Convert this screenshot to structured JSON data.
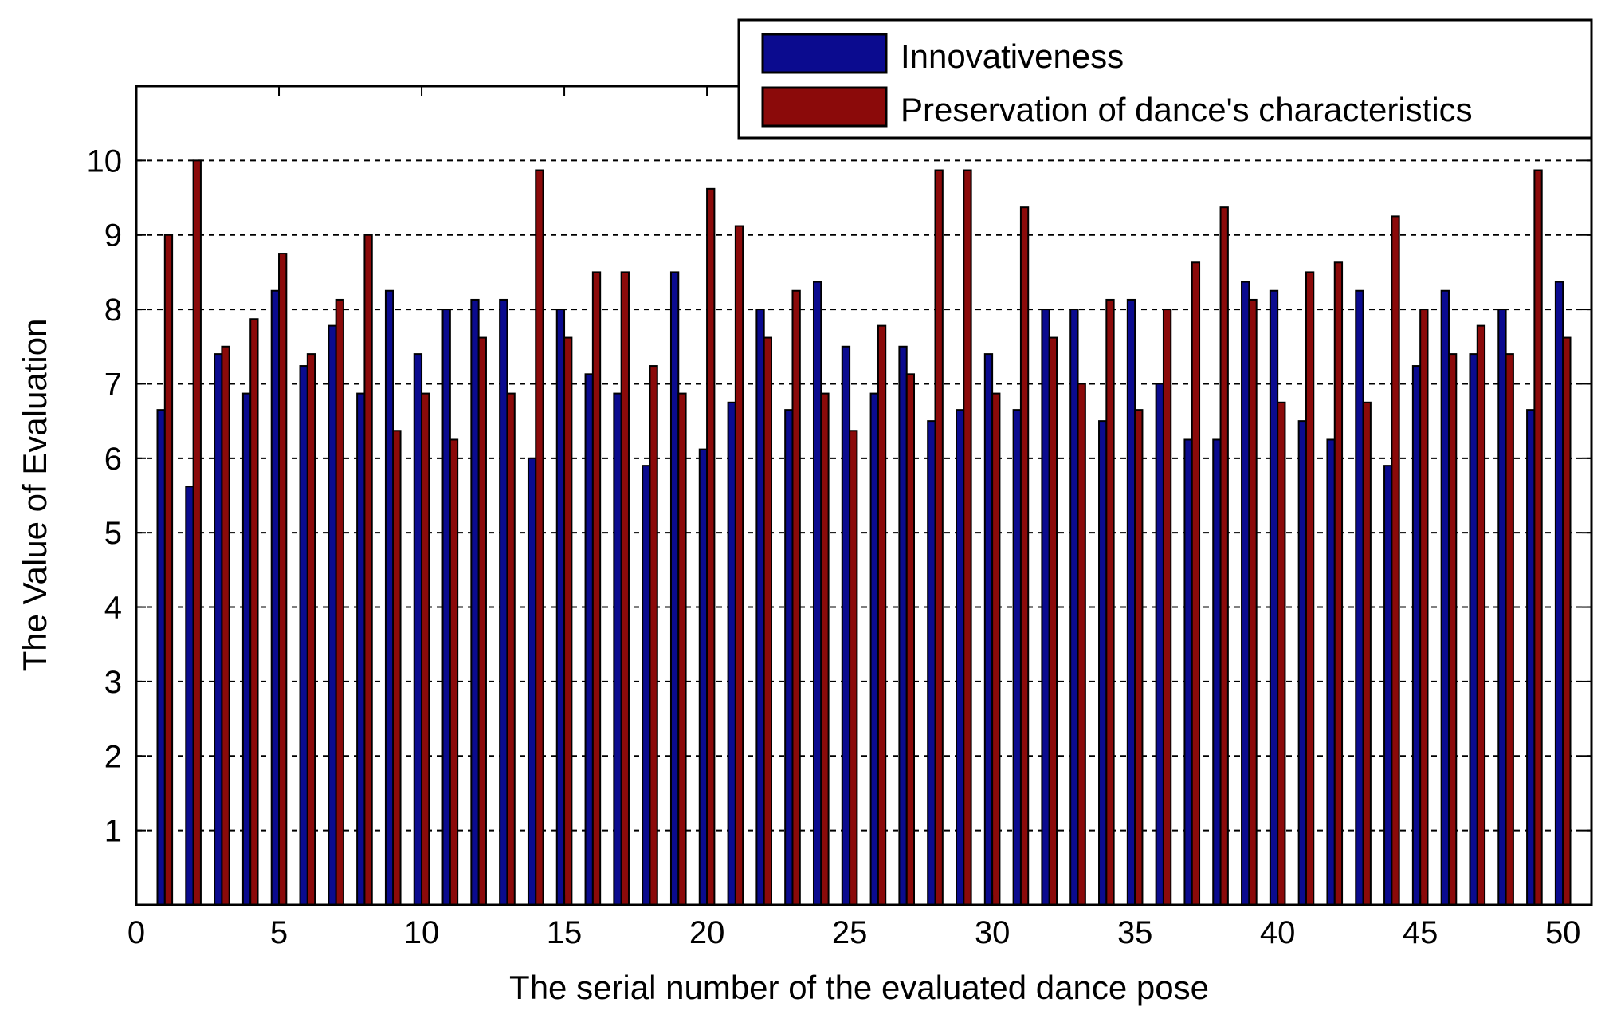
{
  "chart_data": {
    "type": "bar",
    "xlabel": "The serial number of the evaluated dance pose",
    "ylabel": "The Value of Evaluation",
    "xlim": [
      0,
      51
    ],
    "ylim": [
      0,
      11
    ],
    "xticks": [
      0,
      5,
      10,
      15,
      20,
      25,
      30,
      35,
      40,
      45,
      50
    ],
    "yticks": [
      1,
      2,
      3,
      4,
      5,
      6,
      7,
      8,
      9,
      10
    ],
    "grid": "horizontal dashed",
    "legend_position": "top-right",
    "categories": [
      1,
      2,
      3,
      4,
      5,
      6,
      7,
      8,
      9,
      10,
      11,
      12,
      13,
      14,
      15,
      16,
      17,
      18,
      19,
      20,
      21,
      22,
      23,
      24,
      25,
      26,
      27,
      28,
      29,
      30,
      31,
      32,
      33,
      34,
      35,
      36,
      37,
      38,
      39,
      40,
      41,
      42,
      43,
      44,
      45,
      46,
      47,
      48,
      49,
      50
    ],
    "series": [
      {
        "name": "Innovativeness",
        "color": "#0b0b8f",
        "values": [
          6.65,
          5.62,
          7.4,
          6.87,
          8.25,
          7.24,
          7.78,
          6.87,
          8.25,
          7.4,
          8.0,
          8.13,
          8.13,
          6.0,
          8.0,
          7.13,
          6.87,
          5.9,
          8.5,
          6.12,
          6.75,
          8.0,
          6.65,
          8.37,
          7.5,
          6.87,
          7.5,
          6.5,
          6.65,
          7.4,
          6.65,
          8.0,
          8.0,
          6.5,
          8.13,
          7.0,
          6.25,
          6.25,
          8.37,
          8.25,
          6.5,
          6.25,
          8.25,
          5.9,
          7.24,
          8.25,
          7.4,
          8.0,
          6.65,
          8.37
        ]
      },
      {
        "name": "Preservation of dance's characteristics",
        "color": "#8b0a0a",
        "values": [
          9.0,
          10.0,
          7.5,
          7.87,
          8.75,
          7.4,
          8.13,
          9.0,
          6.37,
          6.87,
          6.25,
          7.62,
          6.87,
          9.87,
          7.62,
          8.5,
          8.5,
          7.24,
          6.87,
          9.62,
          9.12,
          7.62,
          8.25,
          6.87,
          6.37,
          7.78,
          7.13,
          9.87,
          9.87,
          6.87,
          9.37,
          7.62,
          7.0,
          8.13,
          6.65,
          8.0,
          8.63,
          9.37,
          8.13,
          6.75,
          8.5,
          8.63,
          6.75,
          9.25,
          8.0,
          7.4,
          7.78,
          7.4,
          9.87,
          7.62
        ]
      }
    ]
  }
}
